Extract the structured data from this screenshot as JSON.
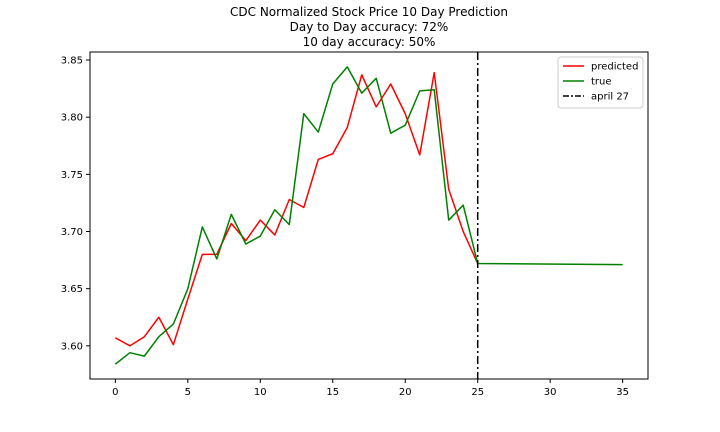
{
  "chart_data": {
    "type": "line",
    "title": [
      "CDC Normalized Stock Price 10 Day Prediction",
      "Day to Day accuracy: 72%",
      "10 day accuracy: 50%"
    ],
    "xlabel": "",
    "ylabel": "",
    "xlim": [
      -1.75,
      36.75
    ],
    "ylim": [
      3.571,
      3.857
    ],
    "xticks": [
      0,
      5,
      10,
      15,
      20,
      25,
      30,
      35
    ],
    "xtick_labels": [
      "0",
      "5",
      "10",
      "15",
      "20",
      "25",
      "30",
      "35"
    ],
    "yticks": [
      3.6,
      3.65,
      3.7,
      3.75,
      3.8,
      3.85
    ],
    "ytick_labels": [
      "3.60",
      "3.65",
      "3.70",
      "3.75",
      "3.80",
      "3.85"
    ],
    "grid": false,
    "legend_position": "top-right",
    "series": [
      {
        "name": "predicted",
        "color": "#ff0000",
        "x": [
          0,
          1,
          2,
          3,
          4,
          5,
          6,
          7,
          8,
          9,
          10,
          11,
          12,
          13,
          14,
          15,
          16,
          17,
          18,
          19,
          20,
          21,
          22,
          23,
          24,
          25
        ],
        "y": [
          3.607,
          3.6,
          3.608,
          3.625,
          3.601,
          3.641,
          3.68,
          3.68,
          3.707,
          3.692,
          3.71,
          3.697,
          3.728,
          3.721,
          3.763,
          3.768,
          3.791,
          3.837,
          3.809,
          3.829,
          3.803,
          3.767,
          3.839,
          3.737,
          3.7,
          3.672
        ]
      },
      {
        "name": "true",
        "color": "#008000",
        "x": [
          0,
          1,
          2,
          3,
          4,
          5,
          6,
          7,
          8,
          9,
          10,
          11,
          12,
          13,
          14,
          15,
          16,
          17,
          18,
          19,
          20,
          21,
          22,
          23,
          24,
          25,
          35
        ],
        "y": [
          3.584,
          3.594,
          3.591,
          3.608,
          3.619,
          3.65,
          3.704,
          3.676,
          3.715,
          3.689,
          3.696,
          3.719,
          3.706,
          3.803,
          3.787,
          3.829,
          3.844,
          3.821,
          3.834,
          3.786,
          3.793,
          3.823,
          3.824,
          3.71,
          3.723,
          3.672,
          3.671
        ]
      }
    ],
    "vlines": [
      {
        "name": "april 27",
        "x": 25,
        "color": "#000000",
        "style": "dashdot"
      }
    ]
  }
}
